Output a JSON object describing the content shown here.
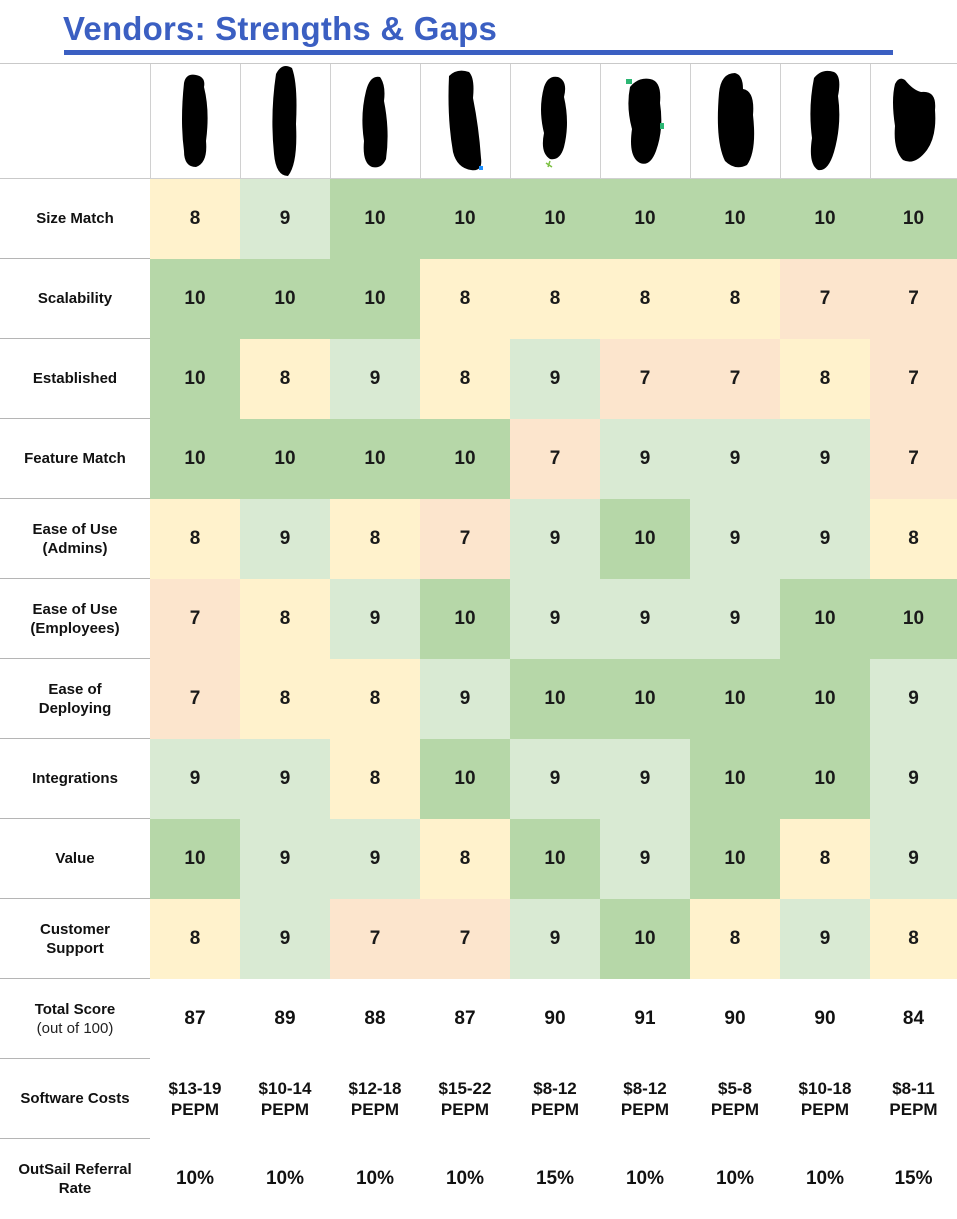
{
  "title": "Vendors: Strengths & Gaps",
  "colors": {
    "score_10": "#b6d7a8",
    "score_9": "#d9ead3",
    "score_8": "#fff2cc",
    "score_7": "#fce5cd",
    "title": "#3b5fc2"
  },
  "criteria": [
    {
      "label": "Size Match",
      "scores": [
        "8",
        "9",
        "10",
        "10",
        "10",
        "10",
        "10",
        "10",
        "10"
      ]
    },
    {
      "label": "Scalability",
      "scores": [
        "10",
        "10",
        "10",
        "8",
        "8",
        "8",
        "8",
        "7",
        "7"
      ]
    },
    {
      "label": "Established",
      "scores": [
        "10",
        "8",
        "9",
        "8",
        "9",
        "7",
        "7",
        "8",
        "7"
      ]
    },
    {
      "label": "Feature Match",
      "scores": [
        "10",
        "10",
        "10",
        "10",
        "7",
        "9",
        "9",
        "9",
        "7"
      ]
    },
    {
      "label_line1": "Ease of Use",
      "label_line2": "(Admins)",
      "scores": [
        "8",
        "9",
        "8",
        "7",
        "9",
        "10",
        "9",
        "9",
        "8"
      ]
    },
    {
      "label_line1": "Ease of Use",
      "label_line2": "(Employees)",
      "scores": [
        "7",
        "8",
        "9",
        "10",
        "9",
        "9",
        "9",
        "10",
        "10"
      ]
    },
    {
      "label_line1": "Ease of",
      "label_line2": "Deploying",
      "scores": [
        "7",
        "8",
        "8",
        "9",
        "10",
        "10",
        "10",
        "10",
        "9"
      ]
    },
    {
      "label": "Integrations",
      "scores": [
        "9",
        "9",
        "8",
        "10",
        "9",
        "9",
        "10",
        "10",
        "9"
      ]
    },
    {
      "label": "Value",
      "scores": [
        "10",
        "9",
        "9",
        "8",
        "10",
        "9",
        "10",
        "8",
        "9"
      ]
    },
    {
      "label_line1": "Customer",
      "label_line2": "Support",
      "scores": [
        "8",
        "9",
        "7",
        "7",
        "9",
        "10",
        "8",
        "9",
        "8"
      ]
    }
  ],
  "total": {
    "label": "Total Score",
    "sublabel": "(out of 100)",
    "values": [
      "87",
      "89",
      "88",
      "87",
      "90",
      "91",
      "90",
      "90",
      "84"
    ]
  },
  "costs": {
    "label": "Software Costs",
    "ranges": [
      "$13-19",
      "$10-14",
      "$12-18",
      "$15-22",
      "$8-12",
      "$8-12",
      "$5-8",
      "$10-18",
      "$8-11"
    ],
    "unit": "PEPM"
  },
  "referral": {
    "label_line1": "OutSail Referral",
    "label_line2": "Rate",
    "values": [
      "10%",
      "10%",
      "10%",
      "10%",
      "15%",
      "10%",
      "10%",
      "10%",
      "15%"
    ]
  },
  "logos_redacted": [
    "redacted-logo",
    "redacted-logo",
    "redacted-logo",
    "redacted-logo",
    "redacted-logo",
    "redacted-logo",
    "redacted-logo",
    "redacted-logo",
    "redacted-logo"
  ]
}
